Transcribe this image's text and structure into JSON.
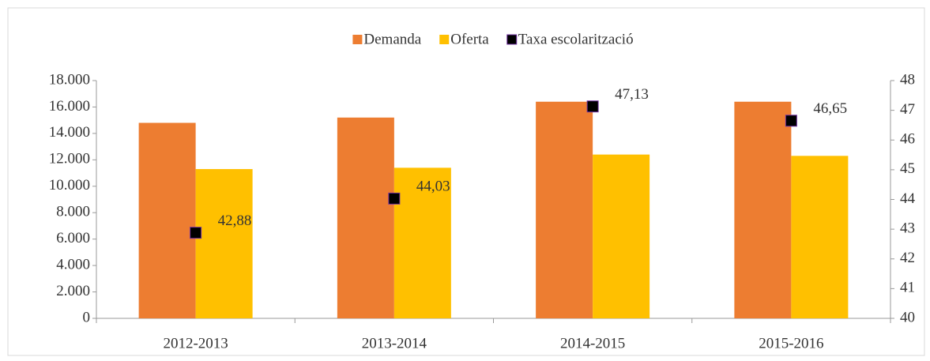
{
  "chart_data": {
    "type": "bar",
    "categories": [
      "2012-2013",
      "2013-2014",
      "2014-2015",
      "2015-2016"
    ],
    "series": [
      {
        "name": "Demanda",
        "color": "#ed7d31",
        "type": "bar",
        "values": [
          14800,
          15200,
          16400,
          16400
        ]
      },
      {
        "name": "Oferta",
        "color": "#ffc000",
        "type": "bar",
        "values": [
          11300,
          11400,
          12400,
          12300
        ]
      },
      {
        "name": "Taxa escolarització",
        "color": "#000000",
        "type": "scatter",
        "axis": "y2",
        "values": [
          42.88,
          44.03,
          47.13,
          46.65
        ],
        "value_labels": [
          "42,88",
          "44,03",
          "47,13",
          "46,65"
        ]
      }
    ],
    "ylim": [
      0,
      18000
    ],
    "yticks": [
      0,
      {
        "value": 2000,
        "label": "2.000"
      },
      {
        "value": 4000,
        "label": "4.000"
      },
      {
        "value": 6000,
        "label": "6.000"
      },
      {
        "value": 8000,
        "label": "8.000"
      },
      {
        "value": 10000,
        "label": "10.000"
      },
      {
        "value": 12000,
        "label": "12.000"
      },
      {
        "value": 14000,
        "label": "14.000"
      },
      {
        "value": 16000,
        "label": "16.000"
      },
      {
        "value": 18000,
        "label": "18.000"
      }
    ],
    "y2lim": [
      40,
      48
    ],
    "y2ticks": [
      40,
      41,
      42,
      43,
      44,
      45,
      46,
      47,
      48
    ],
    "legend": "top"
  }
}
